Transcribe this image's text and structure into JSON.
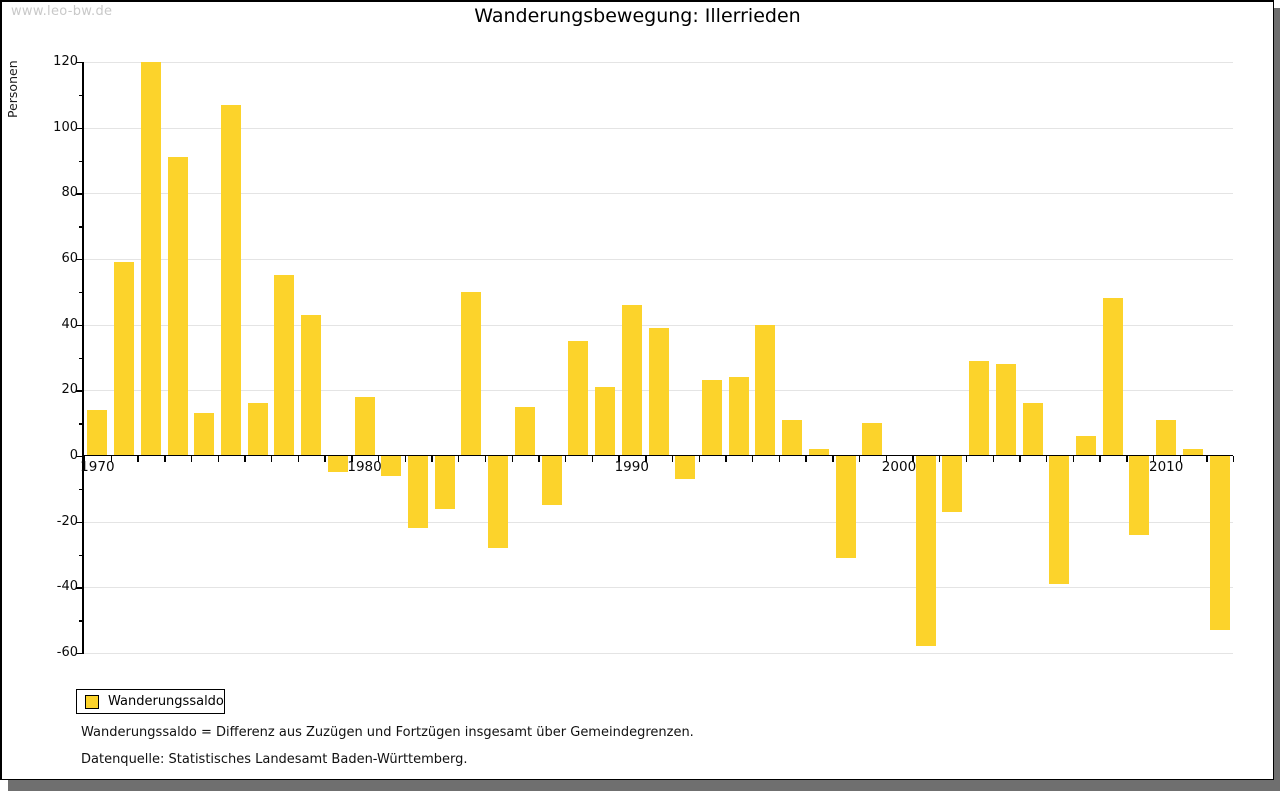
{
  "window": {
    "watermark": "www.leo-bw.de"
  },
  "header": {
    "title": "Wanderungsbewegung: Illerrieden"
  },
  "legend": {
    "label": "Wanderungssaldo"
  },
  "footnotes": {
    "definition": "Wanderungssaldo = Differenz aus Zuzügen und Fortzügen insgesamt über Gemeindegrenzen.",
    "source": "Datenquelle: Statistisches Landesamt Baden-Württemberg."
  },
  "colors": {
    "bar": "#FCD32B",
    "grid": "#e4e4e4",
    "axis": "#000000",
    "watermark": "#c9c9c9",
    "shadow": "#6f6f6f"
  },
  "chart_data": {
    "type": "bar",
    "title": "Wanderungsbewegung: Illerrieden",
    "xlabel": "",
    "ylabel": "Personen",
    "series_name": "Wanderungssaldo",
    "x": [
      1970,
      1971,
      1972,
      1973,
      1974,
      1975,
      1976,
      1977,
      1978,
      1979,
      1980,
      1981,
      1982,
      1983,
      1984,
      1985,
      1986,
      1987,
      1988,
      1989,
      1990,
      1991,
      1992,
      1993,
      1994,
      1995,
      1996,
      1997,
      1998,
      1999,
      2000,
      2001,
      2002,
      2003,
      2004,
      2005,
      2006,
      2007,
      2008,
      2009,
      2010,
      2011,
      2012
    ],
    "values": [
      14,
      59,
      120,
      91,
      13,
      107,
      16,
      55,
      43,
      -5,
      18,
      -6,
      -22,
      -16,
      50,
      -28,
      15,
      -15,
      35,
      21,
      46,
      39,
      -7,
      23,
      24,
      40,
      11,
      2,
      -31,
      10,
      0,
      -58,
      -17,
      29,
      28,
      16,
      -39,
      6,
      48,
      -24,
      11,
      2,
      -53
    ],
    "ylim": [
      -60,
      120
    ],
    "ytick_step": 20,
    "ytick_minor_step": 10,
    "xtick_labels": [
      "1970",
      "1980",
      "1990",
      "2000",
      "2010"
    ],
    "grid": true,
    "legend_position": "bottom-left"
  }
}
